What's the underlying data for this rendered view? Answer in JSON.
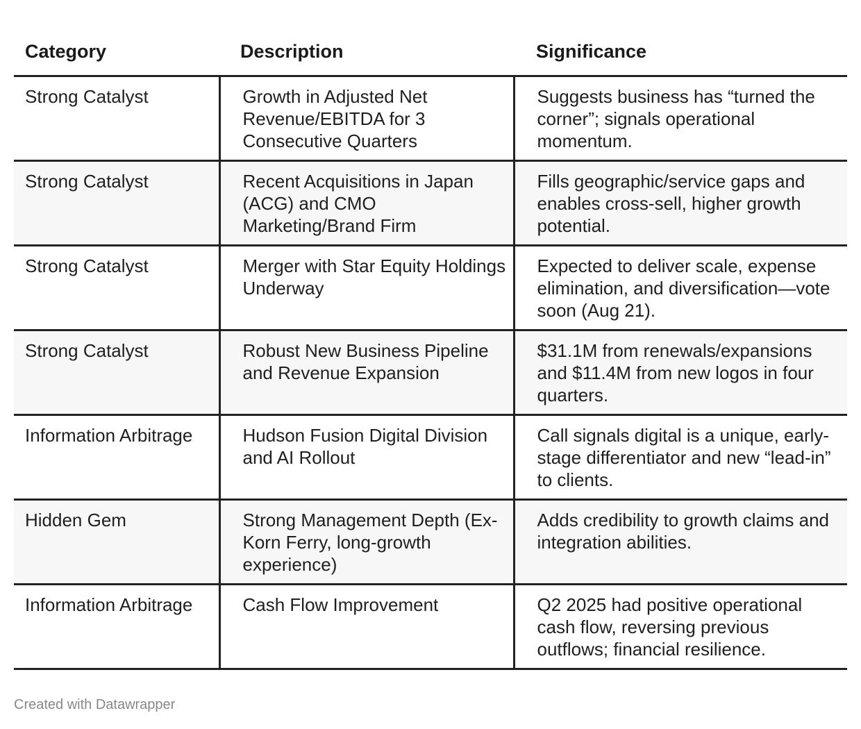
{
  "table": {
    "headers": [
      "Category",
      "Description",
      "Significance"
    ],
    "rows": [
      {
        "category": "Strong Catalyst",
        "description": "Growth in Adjusted Net Revenue/EBITDA for 3 Consecutive Quarters",
        "significance": "Suggests business has “turned the corner”; signals operational momentum."
      },
      {
        "category": "Strong Catalyst",
        "description": "Recent Acquisitions in Japan (ACG) and CMO Marketing/Brand Firm",
        "significance": "Fills geographic/service gaps and enables cross-sell, higher growth potential."
      },
      {
        "category": "Strong Catalyst",
        "description": "Merger with Star Equity Holdings Underway",
        "significance": "Expected to deliver scale, expense elimination, and diversification—vote soon (Aug 21)."
      },
      {
        "category": "Strong Catalyst",
        "description": "Robust New Business Pipeline and Revenue Expansion",
        "significance": "$31.1M from renewals/expansions and $11.4M from new logos in four quarters."
      },
      {
        "category": "Information Arbitrage",
        "description": "Hudson Fusion Digital Division and AI Rollout",
        "significance": "Call signals digital is a unique, early-stage differentiator and new “lead-in” to clients."
      },
      {
        "category": "Hidden Gem",
        "description": "Strong Management Depth (Ex-Korn Ferry, long-growth experience)",
        "significance": "Adds credibility to growth claims and integration abilities."
      },
      {
        "category": "Information Arbitrage",
        "description": "Cash Flow Improvement",
        "significance": "Q2 2025 had positive operational cash flow, reversing previous outflows; financial resilience."
      }
    ]
  },
  "footer": {
    "credit": "Created with Datawrapper"
  }
}
